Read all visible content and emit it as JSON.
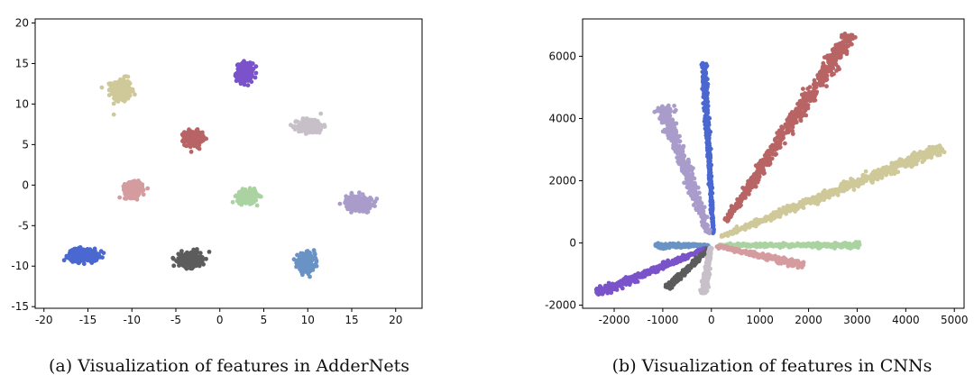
{
  "chart_data": [
    {
      "type": "scatter",
      "caption": "(a) Visualization of features in AdderNets",
      "xlim": [
        -21,
        23
      ],
      "ylim": [
        -15.2,
        20.5
      ],
      "xticks": [
        -20,
        -15,
        -10,
        -5,
        0,
        5,
        10,
        15,
        20
      ],
      "yticks": [
        -15,
        -10,
        -5,
        0,
        5,
        10,
        15,
        20
      ],
      "grid": false,
      "clusters": [
        {
          "color": "#cfc99a",
          "center": [
            -11.2,
            11.7
          ],
          "spread": [
            1.0,
            1.3
          ],
          "points": 300
        },
        {
          "color": "#7a52c9",
          "center": [
            2.8,
            13.9
          ],
          "spread": [
            0.8,
            1.0
          ],
          "points": 300
        },
        {
          "color": "#b96464",
          "center": [
            -3.0,
            5.8
          ],
          "spread": [
            0.9,
            0.8
          ],
          "points": 280
        },
        {
          "color": "#c8c0c9",
          "center": [
            10.3,
            7.3
          ],
          "spread": [
            1.3,
            0.8
          ],
          "points": 280
        },
        {
          "color": "#d49c9f",
          "center": [
            -9.8,
            -0.6
          ],
          "spread": [
            0.9,
            0.8
          ],
          "points": 260
        },
        {
          "color": "#aad3a1",
          "center": [
            3.1,
            -1.4
          ],
          "spread": [
            1.0,
            0.7
          ],
          "points": 260
        },
        {
          "color": "#a99ccb",
          "center": [
            15.8,
            -2.2
          ],
          "spread": [
            1.3,
            0.8
          ],
          "points": 280
        },
        {
          "color": "#4a68cf",
          "center": [
            -15.5,
            -8.6
          ],
          "spread": [
            1.5,
            0.7
          ],
          "points": 320
        },
        {
          "color": "#5c5c5c",
          "center": [
            -3.4,
            -9.2
          ],
          "spread": [
            1.1,
            0.8
          ],
          "points": 300
        },
        {
          "color": "#6a93c5",
          "center": [
            9.8,
            -9.6
          ],
          "spread": [
            0.9,
            1.0
          ],
          "points": 280
        }
      ]
    },
    {
      "type": "scatter",
      "caption": "(b) Visualization of features in CNNs",
      "xlim": [
        -2650,
        5200
      ],
      "ylim": [
        -2100,
        7200
      ],
      "xticks": [
        -2000,
        -1000,
        0,
        1000,
        2000,
        3000,
        4000,
        5000
      ],
      "yticks": [
        -2000,
        0,
        2000,
        4000,
        6000
      ],
      "grid": false,
      "rays": [
        {
          "color": "#b96464",
          "start": [
            300,
            700
          ],
          "end": [
            2850,
            6700
          ],
          "width": 170,
          "points": 650
        },
        {
          "color": "#cfc99a",
          "start": [
            200,
            200
          ],
          "end": [
            4750,
            3050
          ],
          "width": 170,
          "points": 650
        },
        {
          "color": "#4a68cf",
          "start": [
            40,
            300
          ],
          "end": [
            -160,
            5800
          ],
          "width": 55,
          "points": 450
        },
        {
          "color": "#a99ccb",
          "start": [
            -50,
            300
          ],
          "end": [
            -1000,
            4400
          ],
          "width": 170,
          "points": 450
        },
        {
          "color": "#aad3a1",
          "start": [
            150,
            -70
          ],
          "end": [
            3050,
            -80
          ],
          "width": 85,
          "points": 380
        },
        {
          "color": "#d49c9f",
          "start": [
            120,
            -100
          ],
          "end": [
            1900,
            -700
          ],
          "width": 110,
          "points": 320
        },
        {
          "color": "#6a93c5",
          "start": [
            -60,
            -80
          ],
          "end": [
            -1150,
            -90
          ],
          "width": 85,
          "points": 220
        },
        {
          "color": "#7a52c9",
          "start": [
            -100,
            -170
          ],
          "end": [
            -2350,
            -1620
          ],
          "width": 115,
          "points": 500
        },
        {
          "color": "#5c5c5c",
          "start": [
            -50,
            -180
          ],
          "end": [
            -900,
            -1450
          ],
          "width": 85,
          "points": 260
        },
        {
          "color": "#c8c0c9",
          "start": [
            -20,
            -150
          ],
          "end": [
            -160,
            -1620
          ],
          "width": 75,
          "points": 260
        }
      ]
    }
  ]
}
